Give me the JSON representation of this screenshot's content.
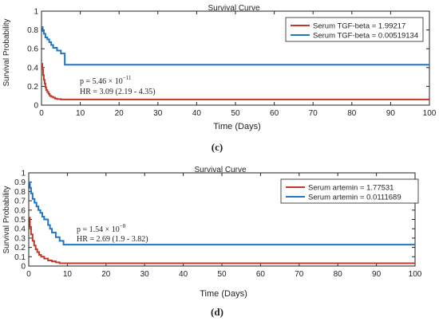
{
  "chart_data": [
    {
      "type": "line",
      "panel_label": "(c)",
      "title": "Survival Curve",
      "xlabel": "Time (Days)",
      "ylabel": "Survival Probability",
      "xlim": [
        0,
        100
      ],
      "ylim": [
        0,
        1
      ],
      "xticks": [
        "0",
        "10",
        "20",
        "30",
        "40",
        "50",
        "60",
        "70",
        "80",
        "90",
        "100"
      ],
      "yticks": [
        "0",
        "0.2",
        "0.4",
        "0.6",
        "0.8",
        "1"
      ],
      "grid": false,
      "legend_position": "top-right",
      "annotation": {
        "p_text": "p = 5.46 × 10",
        "p_exponent": "−11",
        "hr_text": "HR = 3.09 (2.19 - 4.35)"
      },
      "series": [
        {
          "name": "Serum TGF-beta = 1.99217",
          "color": "#c0392b",
          "x": [
            0,
            0.2,
            0.4,
            0.6,
            0.8,
            1.0,
            1.2,
            1.5,
            1.8,
            2.1,
            2.5,
            3.0,
            3.5,
            4.0,
            5.0,
            6.0,
            7.0,
            100
          ],
          "y": [
            0.44,
            0.38,
            0.32,
            0.27,
            0.23,
            0.19,
            0.16,
            0.14,
            0.12,
            0.1,
            0.09,
            0.08,
            0.07,
            0.065,
            0.06,
            0.06,
            0.06,
            0.06
          ]
        },
        {
          "name": "Serum TGF-beta = 0.00519134",
          "color": "#1f77c4",
          "x": [
            0,
            0.3,
            0.6,
            1.0,
            1.5,
            2.0,
            2.5,
            3.0,
            4.0,
            5.0,
            6.0,
            100
          ],
          "y": [
            0.83,
            0.79,
            0.76,
            0.72,
            0.7,
            0.67,
            0.64,
            0.61,
            0.58,
            0.55,
            0.43,
            0.43
          ]
        }
      ]
    },
    {
      "type": "line",
      "panel_label": "(d)",
      "title": "Survival Curve",
      "xlabel": "Time (Days)",
      "ylabel": "Survival Probability",
      "xlim": [
        0,
        100
      ],
      "ylim": [
        0,
        1
      ],
      "xticks": [
        "0",
        "10",
        "20",
        "30",
        "40",
        "50",
        "60",
        "70",
        "80",
        "90",
        "100"
      ],
      "yticks": [
        "0",
        "0.1",
        "0.2",
        "0.3",
        "0.4",
        "0.5",
        "0.6",
        "0.7",
        "0.8",
        "0.9",
        "1"
      ],
      "grid": false,
      "legend_position": "top-right",
      "annotation": {
        "p_text": "p = 1.54 × 10",
        "p_exponent": "−8",
        "hr_text": "HR = 2.69 (1.9 - 3.82)"
      },
      "series": [
        {
          "name": "Serum artemin = 1.77531",
          "color": "#c0392b",
          "x": [
            0,
            0.3,
            0.6,
            1.0,
            1.4,
            1.8,
            2.2,
            2.7,
            3.2,
            4.0,
            5.0,
            6.0,
            7.0,
            8.0,
            100
          ],
          "y": [
            0.52,
            0.42,
            0.34,
            0.27,
            0.22,
            0.18,
            0.15,
            0.12,
            0.1,
            0.08,
            0.06,
            0.05,
            0.04,
            0.03,
            0.03
          ]
        },
        {
          "name": "Serum artemin = 0.0111689",
          "color": "#1f77c4",
          "x": [
            0,
            0.3,
            0.6,
            1.0,
            1.5,
            2.0,
            2.5,
            3.0,
            3.5,
            4.0,
            5.0,
            5.5,
            6.0,
            7.0,
            8.0,
            9.0,
            100
          ],
          "y": [
            0.9,
            0.84,
            0.78,
            0.72,
            0.68,
            0.64,
            0.6,
            0.57,
            0.53,
            0.5,
            0.44,
            0.4,
            0.36,
            0.31,
            0.27,
            0.23,
            0.23
          ]
        }
      ]
    }
  ]
}
